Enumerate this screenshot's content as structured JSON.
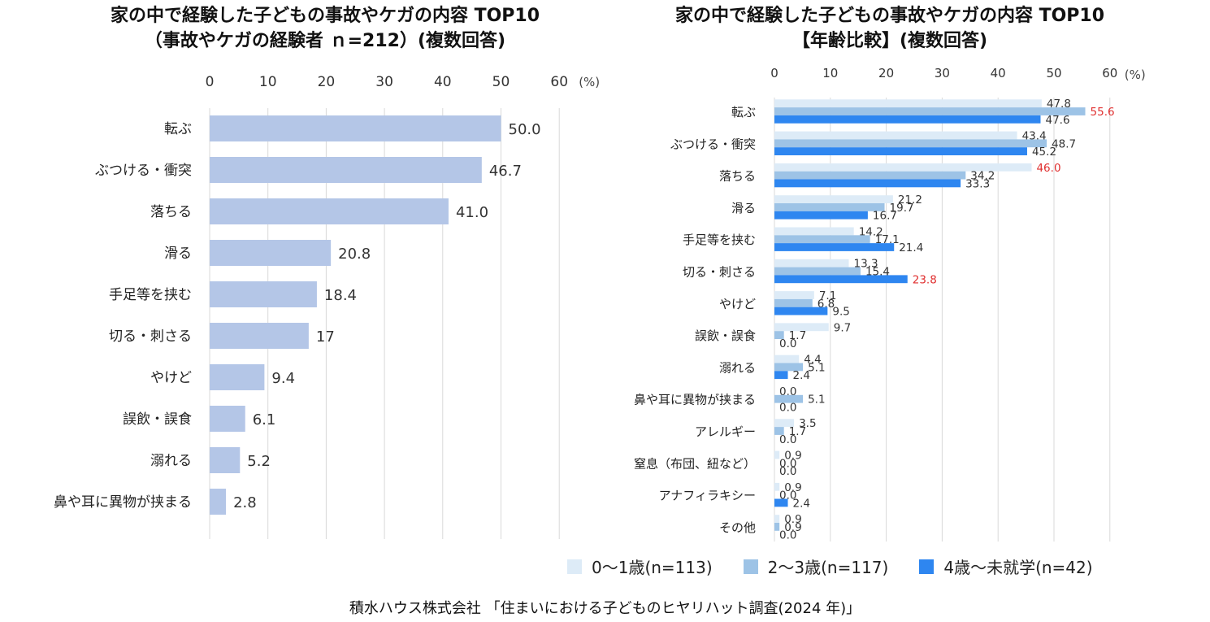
{
  "chart_data": [
    {
      "type": "bar",
      "orientation": "horizontal",
      "title": "家の中で経験した子どもの事故やケガの内容 TOP10",
      "subtitle": "（事故やケガの経験者 ｎ=212）(複数回答)",
      "unit": "(%)",
      "xlim": [
        0,
        60
      ],
      "ticks": [
        "0",
        "10",
        "20",
        "30",
        "40",
        "50",
        "60"
      ],
      "grid": true,
      "categories": [
        "転ぶ",
        "ぶつける・衝突",
        "落ちる",
        "滑る",
        "手足等を挟む",
        "切る・刺さる",
        "やけど",
        "誤飲・誤食",
        "溺れる",
        "鼻や耳に異物が挟まる"
      ],
      "values": [
        50.0,
        46.7,
        41.0,
        20.8,
        18.4,
        17,
        9.4,
        6.1,
        5.2,
        2.8
      ],
      "labels": [
        "50.0",
        "46.7",
        "41.0",
        "20.8",
        "18.4",
        "17",
        "9.4",
        "6.1",
        "5.2",
        "2.8"
      ],
      "color": "#b4c6e7"
    },
    {
      "type": "bar",
      "orientation": "horizontal",
      "title": "家の中で経験した子どもの事故やケガの内容 TOP10",
      "subtitle": "【年齢比較】(複数回答)",
      "unit": "(%)",
      "xlim": [
        0,
        60
      ],
      "ticks": [
        "0",
        "10",
        "20",
        "30",
        "40",
        "50",
        "60"
      ],
      "grid": true,
      "legend_position": "bottom",
      "categories": [
        "転ぶ",
        "ぶつける・衝突",
        "落ちる",
        "滑る",
        "手足等を挟む",
        "切る・刺さる",
        "やけど",
        "誤飲・誤食",
        "溺れる",
        "鼻や耳に異物が挟まる",
        "アレルギー",
        "窒息（布団、紐など）",
        "アナフィラキシー",
        "その他"
      ],
      "highlight_color": "#e03030",
      "series": [
        {
          "name": "0～1歳(n=113)",
          "color": "#ddebf7",
          "values": [
            47.8,
            43.4,
            46.0,
            21.2,
            14.2,
            13.3,
            7.1,
            9.7,
            4.4,
            0.0,
            3.5,
            0.9,
            0.9,
            0.9
          ],
          "labels": [
            "47.8",
            "43.4",
            "46.0",
            "21.2",
            "14.2",
            "13.3",
            "7.1",
            "9.7",
            "4.4",
            "0.0",
            "3.5",
            "0.9",
            "0.9",
            "0.9"
          ],
          "highlight": [
            false,
            false,
            true,
            false,
            false,
            false,
            false,
            false,
            false,
            false,
            false,
            false,
            false,
            false
          ]
        },
        {
          "name": "2～3歳(n=117)",
          "color": "#9dc3e6",
          "values": [
            55.6,
            48.7,
            34.2,
            19.7,
            17.1,
            15.4,
            6.8,
            1.7,
            5.1,
            5.1,
            1.7,
            0.0,
            0.0,
            0.9
          ],
          "labels": [
            "55.6",
            "48.7",
            "34.2",
            "19.7",
            "17.1",
            "15.4",
            "6.8",
            "1.7",
            "5.1",
            "5.1",
            "1.7",
            "0.0",
            "0.0",
            "0.9"
          ],
          "highlight": [
            true,
            false,
            false,
            false,
            false,
            false,
            false,
            false,
            false,
            false,
            false,
            false,
            false,
            false
          ]
        },
        {
          "name": "4歳～未就学(n=42)",
          "color": "#2e86f0",
          "values": [
            47.6,
            45.2,
            33.3,
            16.7,
            21.4,
            23.8,
            9.5,
            0.0,
            2.4,
            0.0,
            0.0,
            0.0,
            2.4,
            0.0
          ],
          "labels": [
            "47.6",
            "45.2",
            "33.3",
            "16.7",
            "21.4",
            "23.8",
            "9.5",
            "0.0",
            "2.4",
            "0.0",
            "0.0",
            "0.0",
            "2.4",
            "0.0"
          ],
          "highlight": [
            false,
            false,
            false,
            false,
            false,
            true,
            false,
            false,
            false,
            false,
            false,
            false,
            false,
            false
          ]
        }
      ]
    }
  ],
  "source": "積水ハウス株式会社 「住まいにおける子どものヒヤリハット調査(2024 年)」"
}
